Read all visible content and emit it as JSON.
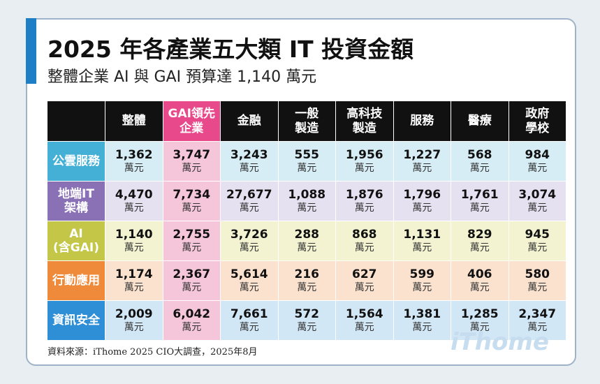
{
  "header": {
    "title": "2025 年各產業五大類 IT 投資金額",
    "subtitle": "整體企業 AI 與 GAI 預算達 1,140 萬元"
  },
  "table": {
    "columns": [
      "整體",
      "GAI領先\n企業",
      "金融",
      "一般\n製造",
      "高科技\n製造",
      "服務",
      "醫療",
      "政府\n學校"
    ],
    "unit": "萬元",
    "rows": [
      {
        "label": "公雲服務",
        "cells": [
          "1,362",
          "3,747",
          "3,243",
          "555",
          "1,956",
          "1,227",
          "568",
          "984"
        ]
      },
      {
        "label": "地端IT\n架構",
        "cells": [
          "4,470",
          "7,734",
          "27,677",
          "1,088",
          "1,876",
          "1,796",
          "1,761",
          "3,074"
        ]
      },
      {
        "label": "AI\n(含GAI)",
        "cells": [
          "1,140",
          "2,755",
          "3,726",
          "288",
          "868",
          "1,131",
          "829",
          "945"
        ]
      },
      {
        "label": "行動應用",
        "cells": [
          "1,174",
          "2,367",
          "5,614",
          "216",
          "627",
          "599",
          "406",
          "580"
        ]
      },
      {
        "label": "資訊安全",
        "cells": [
          "2,009",
          "6,042",
          "7,661",
          "572",
          "1,564",
          "1,381",
          "1,285",
          "2,347"
        ]
      }
    ]
  },
  "footer": {
    "source": "資料來源：iThome 2025 CIO大調查，2025年8月",
    "logo": "iThome"
  }
}
